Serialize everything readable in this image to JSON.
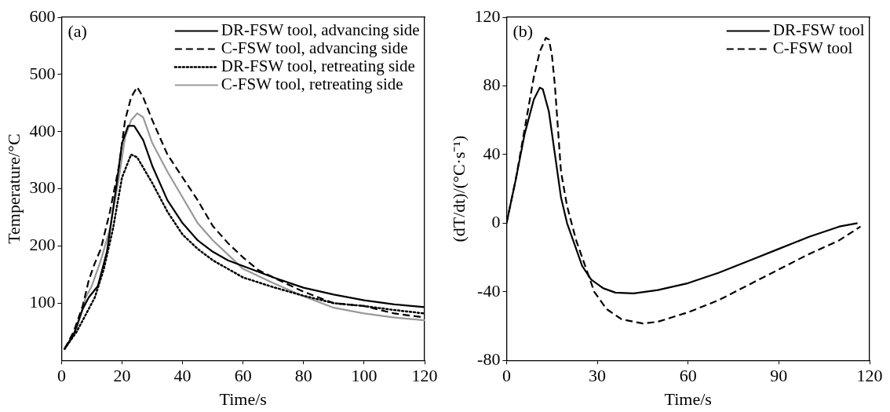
{
  "chart_data": [
    {
      "type": "line",
      "xlabel": "Time/s",
      "ylabel": "Temperature/°C",
      "annotations": [
        "(a)"
      ],
      "xlim": [
        0,
        120
      ],
      "xticks": [
        0,
        20,
        40,
        60,
        80,
        100,
        120
      ],
      "ylim": [
        0,
        600
      ],
      "yticks": [
        100,
        200,
        300,
        400,
        500,
        600
      ],
      "grid": false,
      "legend": "top right",
      "marker": "none",
      "series": [
        {
          "name": "DR-FSW tool, advancing side",
          "color": "#000000",
          "line_style": "solid",
          "x": [
            1,
            4,
            7,
            9,
            12,
            15,
            18,
            20,
            22,
            24,
            27,
            30,
            35,
            40,
            45,
            50,
            55,
            60,
            70,
            80,
            90,
            100,
            110,
            120
          ],
          "values": [
            20,
            45,
            90,
            110,
            130,
            190,
            300,
            380,
            410,
            410,
            385,
            340,
            280,
            240,
            210,
            190,
            175,
            165,
            145,
            127,
            115,
            105,
            98,
            93
          ]
        },
        {
          "name": "C-FSW tool, advancing side",
          "color": "#000000",
          "line_style": "dashed",
          "x": [
            1,
            4,
            7,
            9,
            11,
            13,
            16,
            19,
            21,
            23,
            25,
            27,
            30,
            35,
            40,
            45,
            50,
            55,
            60,
            65,
            70,
            80,
            90,
            100,
            110,
            120
          ],
          "values": [
            20,
            50,
            95,
            140,
            170,
            195,
            260,
            340,
            420,
            460,
            478,
            460,
            420,
            360,
            320,
            280,
            235,
            205,
            180,
            158,
            145,
            120,
            100,
            95,
            82,
            75
          ]
        },
        {
          "name": "DR-FSW tool, retreating side",
          "color": "#000000",
          "line_style": "dotted",
          "x": [
            1,
            5,
            8,
            11,
            14,
            17,
            20,
            23,
            25,
            30,
            35,
            40,
            45,
            50,
            60,
            70,
            80,
            90,
            100,
            110,
            120
          ],
          "values": [
            20,
            50,
            80,
            110,
            160,
            230,
            320,
            360,
            355,
            310,
            260,
            220,
            195,
            175,
            145,
            128,
            113,
            100,
            95,
            88,
            82
          ]
        },
        {
          "name": "C-FSW tool, retreating side",
          "color": "#999999",
          "line_style": "solid",
          "x": [
            1,
            5,
            8,
            10,
            13,
            16,
            19,
            21,
            23,
            25,
            27,
            30,
            35,
            40,
            45,
            50,
            55,
            60,
            70,
            80,
            90,
            100,
            110,
            120
          ],
          "values": [
            20,
            55,
            110,
            130,
            175,
            230,
            320,
            390,
            420,
            432,
            425,
            380,
            330,
            285,
            240,
            210,
            185,
            160,
            135,
            112,
            92,
            82,
            75,
            70
          ]
        }
      ]
    },
    {
      "type": "line",
      "xlabel": "Time/s",
      "ylabel": "(dT/dt)/(°C·s⁻¹)",
      "annotations": [
        "(b)"
      ],
      "xlim": [
        0,
        120
      ],
      "xticks": [
        0,
        30,
        60,
        90,
        120
      ],
      "ylim": [
        -80,
        120
      ],
      "yticks": [
        -80,
        -40,
        0,
        40,
        80,
        120
      ],
      "grid": false,
      "legend": "top right",
      "marker": "none",
      "series": [
        {
          "name": "DR-FSW tool",
          "color": "#000000",
          "line_style": "solid",
          "x": [
            0,
            3,
            6,
            9,
            11,
            12,
            14,
            16,
            18,
            20,
            22,
            25,
            28,
            32,
            36,
            42,
            50,
            60,
            70,
            80,
            90,
            100,
            110,
            116
          ],
          "values": [
            0,
            25,
            52,
            72,
            79,
            78,
            65,
            40,
            15,
            0,
            -10,
            -25,
            -33,
            -38,
            -40.5,
            -41,
            -39,
            -35,
            -29,
            -22,
            -15,
            -8,
            -2,
            0
          ]
        },
        {
          "name": "C-FSW tool",
          "color": "#000000",
          "line_style": "dashed",
          "x": [
            0,
            3,
            6,
            9,
            11,
            13,
            14,
            15,
            16,
            17,
            18,
            20,
            23,
            26,
            29,
            33,
            38,
            45,
            50,
            60,
            70,
            80,
            90,
            100,
            110,
            117
          ],
          "values": [
            0,
            25,
            55,
            85,
            100,
            108,
            107,
            98,
            80,
            55,
            30,
            10,
            -10,
            -25,
            -40,
            -50,
            -56,
            -58.5,
            -57.5,
            -52,
            -45,
            -36,
            -27,
            -18,
            -10,
            -2
          ]
        }
      ]
    }
  ]
}
